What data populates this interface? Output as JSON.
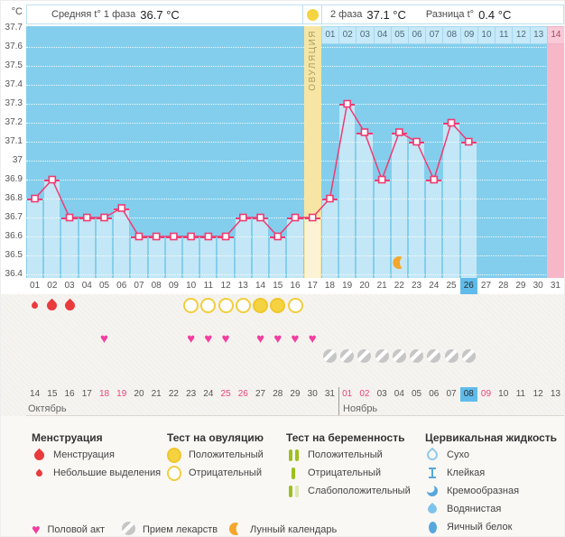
{
  "header": {
    "unit": "°C",
    "phase1_label": "Средняя t° 1 фаза",
    "phase1_value": "36.7 °C",
    "phase2_label": "2 фаза",
    "phase2_value": "37.1 °C",
    "diff_label": "Разница t°",
    "diff_value": "0.4 °C"
  },
  "chart_data": {
    "type": "line",
    "title": "Basal body temperature cycle chart",
    "ylabel": "°C",
    "ylim": [
      36.4,
      37.7
    ],
    "y_ticks": [
      "37.7",
      "37.6",
      "37.5",
      "37.4",
      "37.3",
      "37.2",
      "37.1",
      "37",
      "36.9",
      "36.8",
      "36.7",
      "36.6",
      "36.5",
      "36.4"
    ],
    "cycle_days": 31,
    "temperatures": [
      36.8,
      36.9,
      36.7,
      36.7,
      36.7,
      36.75,
      36.6,
      36.6,
      36.6,
      36.6,
      36.6,
      36.6,
      36.7,
      36.7,
      36.6,
      36.7,
      36.7,
      36.8,
      37.3,
      37.15,
      36.9,
      37.15,
      37.1,
      36.9,
      37.2,
      37.1,
      null,
      null,
      null,
      null,
      null
    ],
    "ovulation_day": 17,
    "ovulation_label": "ОВУЛЯЦИЯ",
    "dpo_days": 14,
    "current_day": 26,
    "expected_period_day": 31,
    "moon_day": 22,
    "menstruation": [
      {
        "day": 1,
        "size": "small"
      },
      {
        "day": 2,
        "size": "large"
      },
      {
        "day": 3,
        "size": "large"
      }
    ],
    "ovulation_tests_negative": [
      10,
      11,
      12,
      13,
      16
    ],
    "ovulation_tests_positive": [
      14,
      15
    ],
    "intercourse_days": [
      5,
      10,
      11,
      12,
      14,
      15,
      16,
      17
    ],
    "medication_days": [
      18,
      19,
      20,
      21,
      22,
      23,
      24,
      25,
      26
    ],
    "grid": true,
    "legend_position": "bottom"
  },
  "dates": {
    "months": [
      {
        "name": "Октябрь",
        "days": [
          14,
          15,
          16,
          17,
          18,
          19,
          20,
          21,
          22,
          23,
          24,
          25,
          26,
          27,
          28,
          29,
          30,
          31
        ],
        "weekend_days": [
          18,
          19,
          25,
          26
        ]
      },
      {
        "name": "Ноябрь",
        "days": [
          1,
          2,
          3,
          4,
          5,
          6,
          7,
          8,
          9,
          10,
          11,
          12,
          13
        ],
        "weekend_days": [
          1,
          2,
          9
        ],
        "today": 8
      }
    ]
  },
  "colors": {
    "chart_bg": "#83CEEC",
    "line": "#EE3B72",
    "ovulation_column": "#F7E6A3",
    "period_column": "#F8B7C9",
    "today_highlight": "#5FBCEA",
    "test_yellow": "#F5D340",
    "menses_red": "#E93A3C",
    "heart_pink": "#F43DA0",
    "pill_gray": "#C6C6C6",
    "moon_orange": "#F5A62B",
    "pregnancy_green": "#9CC11C",
    "cervical_blue": "#57A7DC"
  },
  "legend": {
    "columns": [
      {
        "title": "Менструация",
        "items": [
          {
            "icon": "drop-large",
            "label": "Менструация"
          },
          {
            "icon": "drop-small",
            "label": "Небольшие выделения"
          }
        ]
      },
      {
        "title": "Тест на овуляцию",
        "items": [
          {
            "icon": "ovulation-test-positive",
            "label": "Положительный"
          },
          {
            "icon": "ovulation-test-negative",
            "label": "Отрицательный"
          }
        ]
      },
      {
        "title": "Тест на беременность",
        "items": [
          {
            "icon": "pregnancy-test-positive",
            "label": "Положительный"
          },
          {
            "icon": "pregnancy-test-negative",
            "label": "Отрицательный"
          },
          {
            "icon": "pregnancy-test-weak",
            "label": "Слабоположительный"
          }
        ]
      },
      {
        "title": "Цервикальная жидкость",
        "items": [
          {
            "icon": "cervical-dry",
            "label": "Сухо"
          },
          {
            "icon": "cervical-sticky",
            "label": "Клейкая"
          },
          {
            "icon": "cervical-creamy",
            "label": "Кремообразная"
          },
          {
            "icon": "cervical-watery",
            "label": "Водянистая"
          },
          {
            "icon": "cervical-eggwhite",
            "label": "Яичный белок"
          }
        ]
      }
    ],
    "bottom_row": [
      {
        "icon": "heart",
        "label": "Половой акт"
      },
      {
        "icon": "pill",
        "label": "Прием лекарств"
      },
      {
        "icon": "moon",
        "label": "Лунный календарь"
      }
    ]
  }
}
